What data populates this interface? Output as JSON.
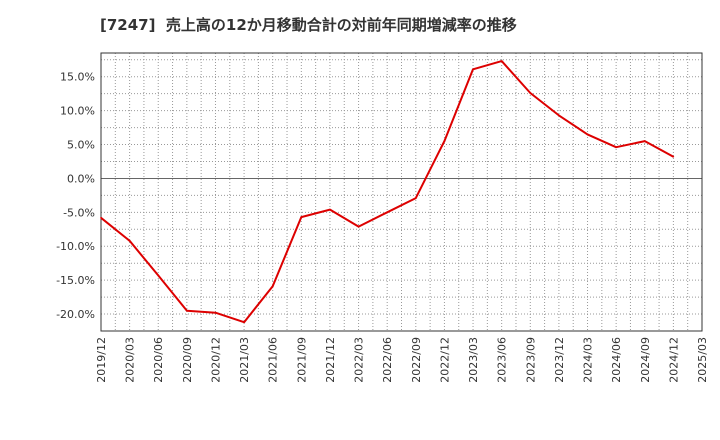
{
  "chart_data": {
    "type": "line",
    "title": "[7247]  売上高の12か月移動合計の対前年同期増減率の推移",
    "xlabel": "",
    "ylabel": "",
    "grid": true,
    "legend": "none",
    "ylim": [
      -22.5,
      18.5
    ],
    "yticks": [
      15,
      10,
      5,
      0,
      -5,
      -10,
      -15,
      -20
    ],
    "ytick_labels": [
      "15.0%",
      "10.0%",
      "5.0%",
      "0.0%",
      "-5.0%",
      "-10.0%",
      "-15.0%",
      "-20.0%"
    ],
    "categories": [
      "2019/12",
      "2020/03",
      "2020/06",
      "2020/09",
      "2020/12",
      "2021/03",
      "2021/06",
      "2021/09",
      "2021/12",
      "2022/03",
      "2022/06",
      "2022/09",
      "2022/12",
      "2023/03",
      "2023/06",
      "2023/09",
      "2023/12",
      "2024/03",
      "2024/06",
      "2024/09",
      "2024/12",
      "2025/03"
    ],
    "series": [
      {
        "name": "増減率",
        "color": "#dd0000",
        "values": [
          -5.8,
          -9.2,
          -14.3,
          -19.5,
          -19.8,
          -21.2,
          -15.9,
          -5.7,
          -4.6,
          -7.1,
          -5.0,
          -2.9,
          5.5,
          16.1,
          17.3,
          12.6,
          9.3,
          6.5,
          4.6,
          5.5,
          3.2,
          null
        ]
      }
    ],
    "colors": {
      "zero_line": "#666666",
      "grid": "#999999",
      "frame": "#333333"
    }
  }
}
